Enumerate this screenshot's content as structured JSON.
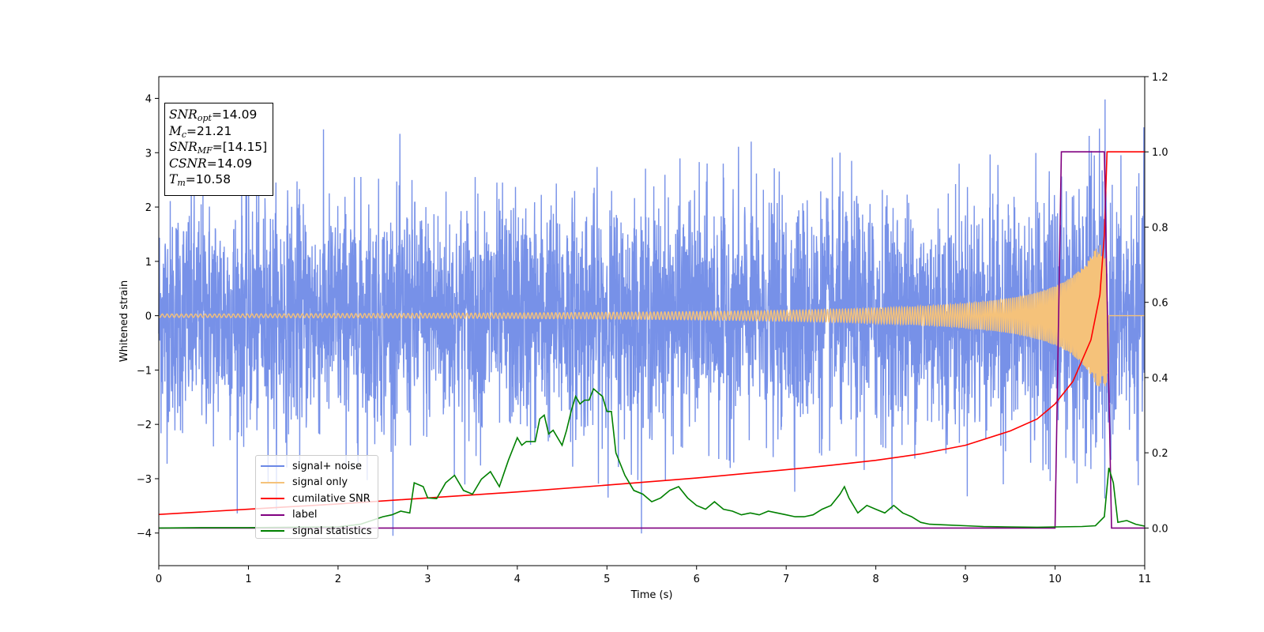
{
  "chart_data": {
    "type": "line",
    "xlabel": "Time (s)",
    "ylabel": "Whitened strain",
    "xlim": [
      0,
      11
    ],
    "ylim": [
      -4.6,
      4.4
    ],
    "y2lim": [
      -0.1,
      1.2
    ],
    "x_ticks": [
      0,
      1,
      2,
      3,
      4,
      5,
      6,
      7,
      8,
      9,
      10,
      11
    ],
    "y_ticks": [
      -4,
      -3,
      -2,
      -1,
      0,
      1,
      2,
      3,
      4
    ],
    "y2_ticks": [
      "0.0",
      "0.2",
      "0.4",
      "0.6",
      "0.8",
      "1.0",
      "1.2"
    ],
    "grid": false,
    "legend_position": "lower-left",
    "annotation": {
      "lines": [
        {
          "symbol": "SNR",
          "sub": "opt",
          "value": "=14.09"
        },
        {
          "symbol": "M",
          "sub": "c",
          "value": "=21.21"
        },
        {
          "symbol": "SNR",
          "sub": "MF",
          "value": "=[14.15]"
        },
        {
          "symbol": "CSNR",
          "sub": "",
          "value": "=14.09"
        },
        {
          "symbol": "T",
          "sub": "m",
          "value": "=10.58"
        }
      ]
    },
    "series": [
      {
        "name": "signal+ noise",
        "color": "#6b88e6",
        "axis": "left",
        "description_stats": {
          "mean": 0,
          "std": 1.0,
          "min": -4.05,
          "max": 3.98
        }
      },
      {
        "name": "signal only",
        "color": "#f5c27a",
        "axis": "left",
        "chirp": {
          "start_amplitude": 0.03,
          "peak_amplitude": 1.3,
          "merger_time": 10.58,
          "end_time": 10.6
        }
      },
      {
        "name": "cumilative SNR",
        "color": "#ff0000",
        "axis": "right",
        "x": [
          0,
          1,
          2,
          3,
          4,
          5,
          6,
          7,
          7.5,
          8,
          8.5,
          9,
          9.5,
          9.8,
          10,
          10.2,
          10.4,
          10.5,
          10.55,
          10.58,
          10.6,
          11
        ],
        "y": [
          0.036,
          0.05,
          0.064,
          0.08,
          0.096,
          0.114,
          0.133,
          0.155,
          0.167,
          0.18,
          0.197,
          0.22,
          0.258,
          0.29,
          0.33,
          0.39,
          0.5,
          0.62,
          0.78,
          1.0,
          1.0,
          1.0
        ]
      },
      {
        "name": "label",
        "color": "#800080",
        "axis": "right",
        "x": [
          0,
          10.0,
          10.07,
          10.55,
          10.63,
          11
        ],
        "y": [
          0,
          0,
          1,
          1,
          0,
          0
        ]
      },
      {
        "name": "signal statistics",
        "color": "#008000",
        "axis": "right",
        "x": [
          0,
          0.5,
          1,
          1.5,
          2,
          2.25,
          2.5,
          2.6,
          2.7,
          2.8,
          2.85,
          2.95,
          3.0,
          3.1,
          3.2,
          3.3,
          3.4,
          3.5,
          3.6,
          3.7,
          3.8,
          3.9,
          4.0,
          4.05,
          4.1,
          4.2,
          4.25,
          4.3,
          4.35,
          4.4,
          4.5,
          4.55,
          4.6,
          4.65,
          4.7,
          4.75,
          4.8,
          4.85,
          4.9,
          4.95,
          5.0,
          5.05,
          5.1,
          5.2,
          5.3,
          5.4,
          5.5,
          5.6,
          5.7,
          5.8,
          5.9,
          6.0,
          6.1,
          6.2,
          6.3,
          6.4,
          6.5,
          6.6,
          6.7,
          6.8,
          6.9,
          7.0,
          7.1,
          7.2,
          7.3,
          7.4,
          7.5,
          7.6,
          7.65,
          7.7,
          7.8,
          7.9,
          8.0,
          8.1,
          8.2,
          8.3,
          8.4,
          8.5,
          8.6,
          8.8,
          9.0,
          9.2,
          9.5,
          9.8,
          10.0,
          10.3,
          10.45,
          10.55,
          10.6,
          10.65,
          10.7,
          10.8,
          10.9,
          11.0
        ],
        "y": [
          0.0,
          0.001,
          0.001,
          0.002,
          0.003,
          0.01,
          0.03,
          0.035,
          0.045,
          0.04,
          0.12,
          0.11,
          0.08,
          0.078,
          0.12,
          0.14,
          0.1,
          0.09,
          0.13,
          0.15,
          0.11,
          0.18,
          0.24,
          0.22,
          0.23,
          0.23,
          0.29,
          0.3,
          0.25,
          0.26,
          0.22,
          0.26,
          0.31,
          0.35,
          0.33,
          0.34,
          0.34,
          0.37,
          0.36,
          0.35,
          0.31,
          0.31,
          0.2,
          0.14,
          0.1,
          0.09,
          0.07,
          0.08,
          0.1,
          0.11,
          0.08,
          0.06,
          0.05,
          0.07,
          0.05,
          0.045,
          0.035,
          0.04,
          0.035,
          0.045,
          0.04,
          0.035,
          0.03,
          0.03,
          0.035,
          0.05,
          0.06,
          0.09,
          0.11,
          0.08,
          0.04,
          0.06,
          0.05,
          0.04,
          0.06,
          0.04,
          0.03,
          0.015,
          0.01,
          0.008,
          0.006,
          0.004,
          0.003,
          0.002,
          0.003,
          0.004,
          0.006,
          0.03,
          0.16,
          0.12,
          0.015,
          0.02,
          0.01,
          0.005
        ]
      }
    ]
  }
}
